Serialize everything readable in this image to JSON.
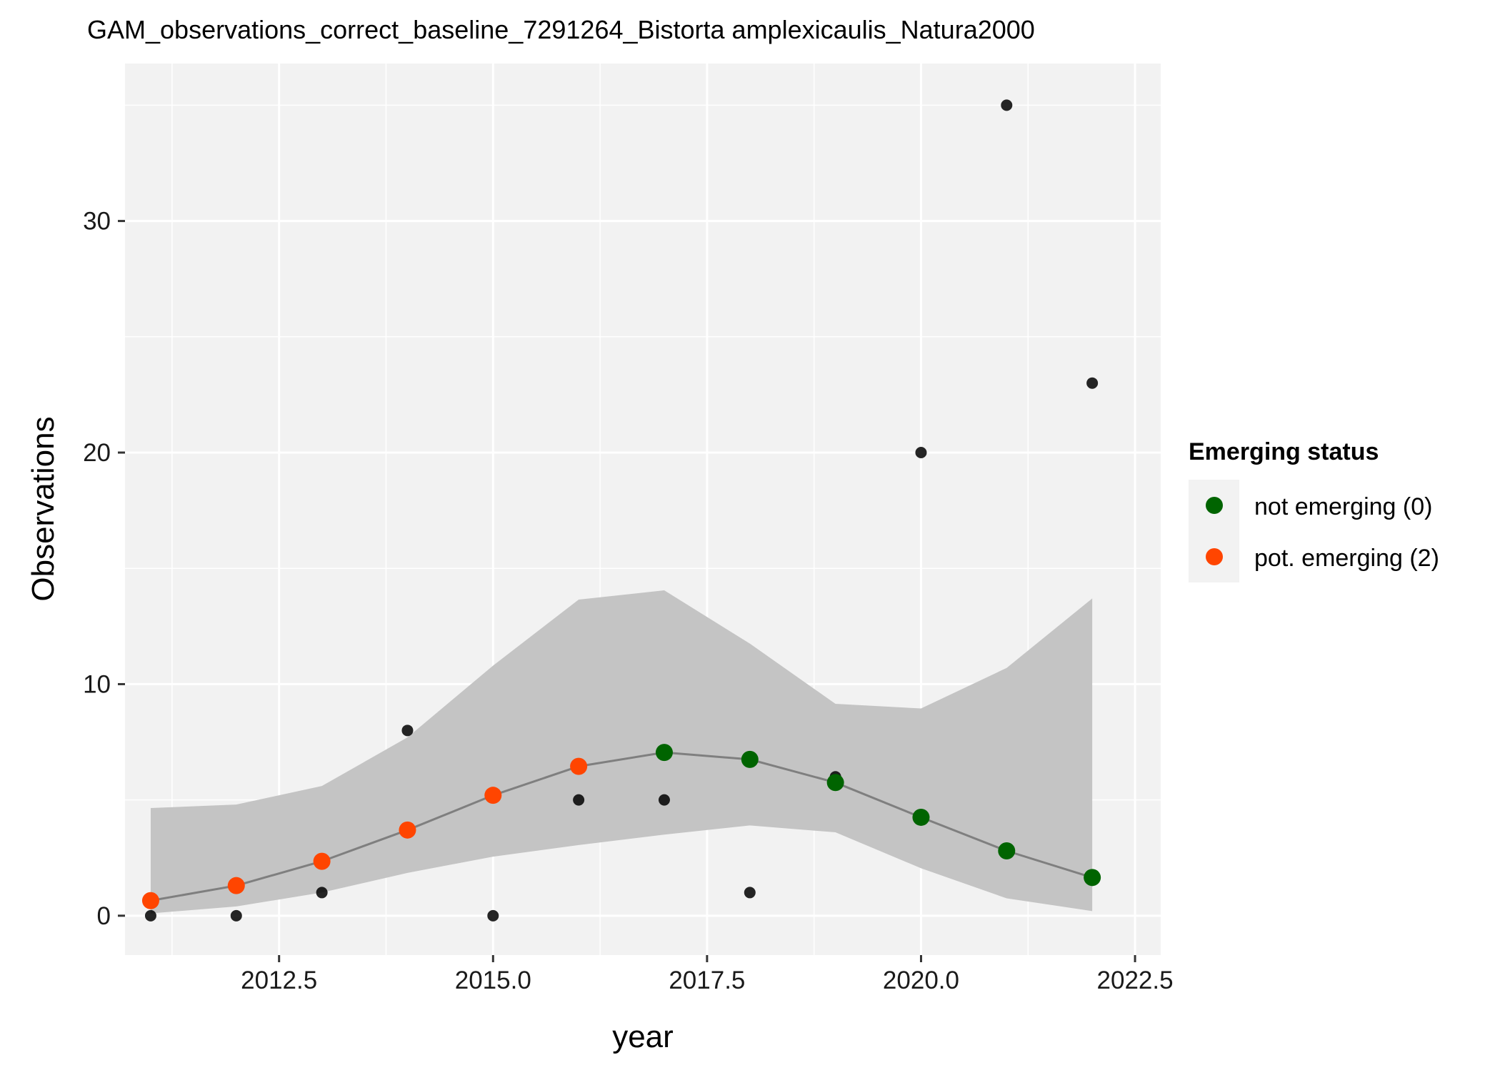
{
  "chart_data": {
    "type": "scatter",
    "title": "GAM_observations_correct_baseline_7291264_Bistorta amplexicaulis_Natura2000",
    "xlabel": "year",
    "ylabel": "Observations",
    "xlim": [
      2010.7,
      2022.8
    ],
    "ylim": [
      -1.7,
      36.8
    ],
    "x_ticks": [
      2012.5,
      2015.0,
      2017.5,
      2020.0,
      2022.5
    ],
    "x_tick_labels": [
      "2012.5",
      "2015.0",
      "2017.5",
      "2020.0",
      "2022.5"
    ],
    "y_ticks": [
      0,
      10,
      20,
      30
    ],
    "y_tick_labels": [
      "0",
      "10",
      "20",
      "30"
    ],
    "grid": true,
    "legend": {
      "title": "Emerging status",
      "position": "right",
      "entries": [
        {
          "label": "not emerging (0)",
          "color": "#006400"
        },
        {
          "label": "pot. emerging (2)",
          "color": "#FF4500"
        }
      ]
    },
    "observed": {
      "x": [
        2011,
        2012,
        2013,
        2014,
        2015,
        2016,
        2017,
        2018,
        2019,
        2020,
        2021,
        2022
      ],
      "y": [
        0,
        0,
        1,
        8,
        0,
        5,
        5,
        1,
        6,
        20,
        35,
        23
      ],
      "color": "#000000"
    },
    "fit": {
      "x": [
        2011,
        2012,
        2013,
        2014,
        2015,
        2016,
        2017,
        2018,
        2019,
        2020,
        2021,
        2022
      ],
      "y": [
        0.65,
        1.3,
        2.35,
        3.7,
        5.2,
        6.45,
        7.05,
        6.75,
        5.75,
        4.25,
        2.8,
        1.65
      ],
      "lower": [
        0.1,
        0.4,
        1.0,
        1.85,
        2.55,
        3.05,
        3.5,
        3.9,
        3.6,
        2.05,
        0.75,
        0.2
      ],
      "upper": [
        4.65,
        4.8,
        5.6,
        7.7,
        10.8,
        13.65,
        14.05,
        11.75,
        9.15,
        8.95,
        10.7,
        13.7
      ],
      "status": [
        "pot. emerging (2)",
        "pot. emerging (2)",
        "pot. emerging (2)",
        "pot. emerging (2)",
        "pot. emerging (2)",
        "pot. emerging (2)",
        "not emerging (0)",
        "not emerging (0)",
        "not emerging (0)",
        "not emerging (0)",
        "not emerging (0)",
        "not emerging (0)"
      ],
      "line_color": "#7F7F7F",
      "ribbon_color": "#C4C4C4"
    },
    "colors": {
      "panel_background": "#F2F2F2",
      "grid_major": "#FFFFFF",
      "not_emerging": "#006400",
      "pot_emerging": "#FF4500"
    }
  }
}
